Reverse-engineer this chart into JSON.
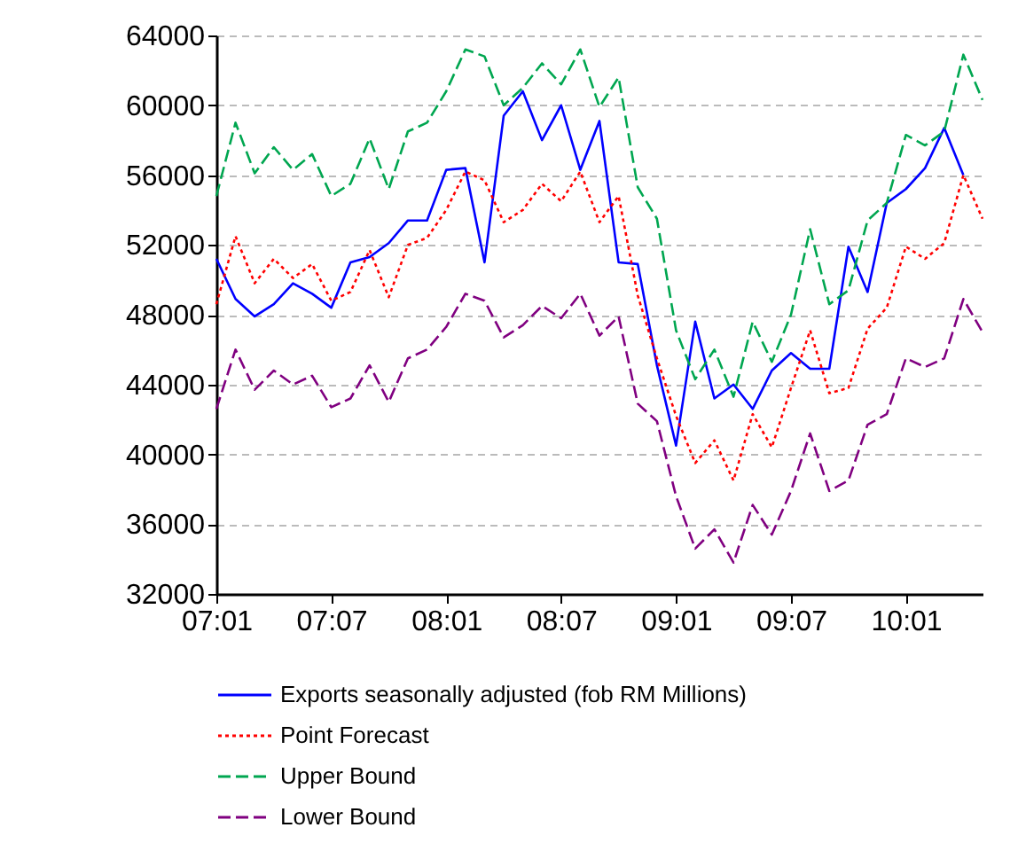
{
  "chart_data": {
    "type": "line",
    "categories": [
      "07:01",
      null,
      null,
      null,
      null,
      null,
      "07:07",
      null,
      null,
      null,
      null,
      null,
      "08:01",
      null,
      null,
      null,
      null,
      null,
      "08:07",
      null,
      null,
      null,
      null,
      null,
      "09:01",
      null,
      null,
      null,
      null,
      null,
      "09:07",
      null,
      null,
      null,
      null,
      null,
      "10:01",
      null,
      null,
      null,
      null
    ],
    "ylim": [
      32000,
      64000
    ],
    "yticks": [
      32000,
      36000,
      40000,
      44000,
      48000,
      52000,
      56000,
      60000,
      64000
    ],
    "grid": "y",
    "legend": "bottom",
    "series": [
      {
        "name": "Exports seasonally adjusted (fob RM Millions)",
        "color": "#0000ff",
        "line_style": "solid",
        "values": [
          51200,
          48900,
          47900,
          48600,
          49800,
          49200,
          48400,
          51000,
          51300,
          52100,
          53400,
          53400,
          56300,
          56400,
          51000,
          59400,
          60800,
          58000,
          60000,
          56300,
          59100,
          51000,
          50900,
          45100,
          40500,
          47600,
          43200,
          44000,
          42600,
          44800,
          45800,
          44900,
          44900,
          51900,
          49300,
          54400,
          55200,
          56400,
          58700,
          56000,
          null
        ]
      },
      {
        "name": "Point Forecast",
        "color": "#ff0000",
        "line_style": "dotted",
        "values": [
          48600,
          52500,
          49800,
          51200,
          50100,
          50900,
          48800,
          49300,
          51700,
          49000,
          52000,
          52400,
          54000,
          56200,
          55700,
          53300,
          54000,
          55500,
          54500,
          56200,
          53300,
          54800,
          49100,
          45500,
          42200,
          39500,
          40800,
          38500,
          42300,
          40400,
          43800,
          47100,
          43500,
          43800,
          47200,
          48400,
          51900,
          51200,
          52100,
          56000,
          53500
        ]
      },
      {
        "name": "Upper Bound",
        "color": "#00a650",
        "line_style": "dashed",
        "values": [
          54800,
          59000,
          56100,
          57600,
          56300,
          57200,
          54800,
          55500,
          58100,
          55200,
          58500,
          59000,
          60800,
          63200,
          62800,
          60000,
          61000,
          62400,
          61200,
          63200,
          59900,
          61600,
          55300,
          53500,
          47100,
          44300,
          46000,
          43300,
          47600,
          45300,
          48000,
          52900,
          48600,
          49400,
          53400,
          54400,
          58300,
          57700,
          58500,
          62900,
          60300
        ]
      },
      {
        "name": "Lower Bound",
        "color": "#800080",
        "line_style": "dashed",
        "values": [
          42600,
          46000,
          43700,
          44800,
          44000,
          44500,
          42700,
          43200,
          45100,
          43000,
          45500,
          46000,
          47300,
          49200,
          48800,
          46700,
          47400,
          48500,
          47800,
          49200,
          46800,
          47900,
          42900,
          41900,
          37600,
          34600,
          35700,
          33800,
          37100,
          35400,
          37900,
          41200,
          37900,
          38500,
          41700,
          42300,
          45500,
          45000,
          45500,
          48900,
          47000
        ]
      }
    ]
  }
}
